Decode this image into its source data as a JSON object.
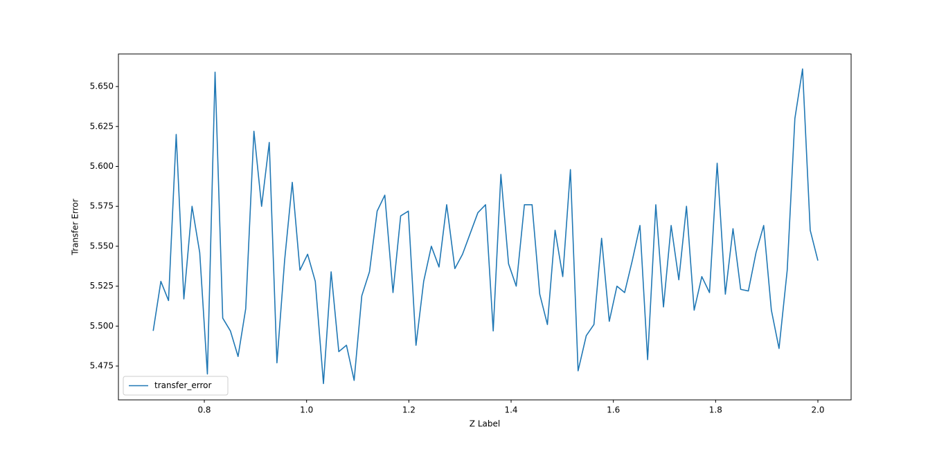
{
  "chart_data": {
    "type": "line",
    "x_label": "Z Label",
    "y_label": "Transfer Error",
    "x": [
      0.7,
      0.715,
      0.73,
      0.745,
      0.76,
      0.776,
      0.791,
      0.806,
      0.821,
      0.836,
      0.851,
      0.866,
      0.881,
      0.897,
      0.912,
      0.927,
      0.942,
      0.957,
      0.972,
      0.987,
      1.002,
      1.017,
      1.033,
      1.048,
      1.063,
      1.078,
      1.093,
      1.108,
      1.123,
      1.138,
      1.153,
      1.169,
      1.184,
      1.199,
      1.214,
      1.229,
      1.244,
      1.259,
      1.274,
      1.29,
      1.305,
      1.32,
      1.335,
      1.35,
      1.365,
      1.38,
      1.395,
      1.41,
      1.426,
      1.441,
      1.456,
      1.471,
      1.486,
      1.501,
      1.516,
      1.531,
      1.547,
      1.562,
      1.577,
      1.592,
      1.607,
      1.622,
      1.637,
      1.652,
      1.667,
      1.683,
      1.698,
      1.713,
      1.728,
      1.743,
      1.758,
      1.773,
      1.788,
      1.803,
      1.819,
      1.834,
      1.849,
      1.864,
      1.879,
      1.894,
      1.909,
      1.924,
      1.94,
      1.955,
      1.97,
      1.985,
      2.0
    ],
    "series": [
      {
        "name": "transfer_error",
        "color": "#1f77b4",
        "values": [
          5.497,
          5.528,
          5.516,
          5.62,
          5.517,
          5.575,
          5.546,
          5.47,
          5.659,
          5.505,
          5.497,
          5.481,
          5.511,
          5.622,
          5.575,
          5.615,
          5.477,
          5.541,
          5.59,
          5.535,
          5.545,
          5.528,
          5.464,
          5.534,
          5.484,
          5.488,
          5.466,
          5.519,
          5.534,
          5.572,
          5.582,
          5.521,
          5.569,
          5.572,
          5.488,
          5.528,
          5.55,
          5.537,
          5.576,
          5.536,
          5.545,
          5.558,
          5.571,
          5.576,
          5.497,
          5.595,
          5.539,
          5.525,
          5.576,
          5.576,
          5.52,
          5.501,
          5.56,
          5.531,
          5.598,
          5.472,
          5.494,
          5.501,
          5.555,
          5.503,
          5.525,
          5.521,
          5.541,
          5.563,
          5.479,
          5.576,
          5.512,
          5.563,
          5.529,
          5.575,
          5.51,
          5.531,
          5.521,
          5.602,
          5.52,
          5.561,
          5.523,
          5.522,
          5.546,
          5.563,
          5.51,
          5.486,
          5.535,
          5.63,
          5.661,
          5.56,
          5.541
        ]
      }
    ],
    "xlim": [
      0.632,
      2.065
    ],
    "ylim": [
      5.4538,
      5.6704
    ],
    "xticks": [
      0.8,
      {
        "value": 1,
        "label": "1.0"
      },
      1.2,
      1.4,
      1.6,
      1.8,
      {
        "value": 2,
        "label": "2.0"
      }
    ],
    "yticks": [
      5.475,
      {
        "value": 5.5,
        "label": "5.500"
      },
      5.525,
      {
        "value": 5.55,
        "label": "5.550"
      },
      5.575,
      {
        "value": 5.6,
        "label": "5.600"
      },
      5.625,
      {
        "value": 5.65,
        "label": "5.650"
      }
    ],
    "legend": "lower left",
    "grid": false
  }
}
